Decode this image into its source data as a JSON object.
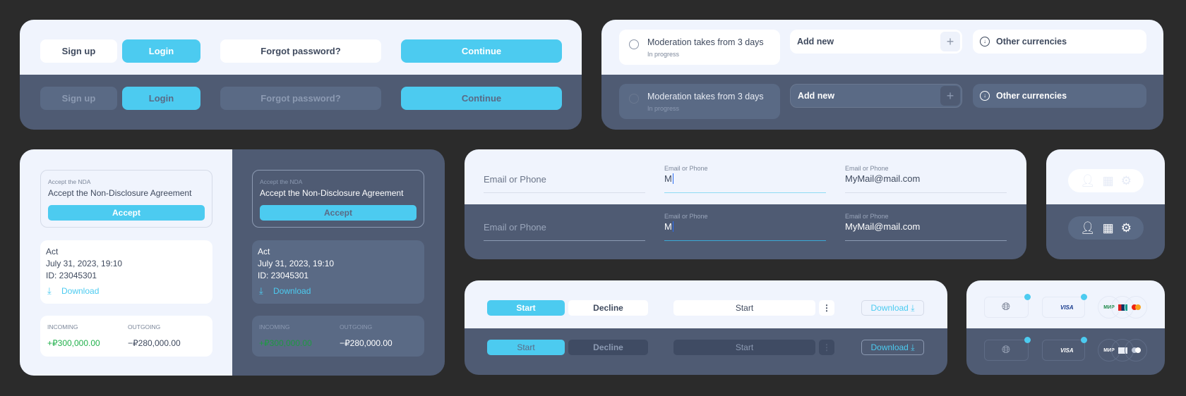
{
  "auth": {
    "sign_up": "Sign up",
    "login": "Login",
    "forgot": "Forgot password?",
    "continue": "Continue"
  },
  "status": {
    "moderation_title": "Moderation takes from 3 days",
    "moderation_sub": "In progress",
    "add_new": "Add new",
    "other_currencies": "Other currencies"
  },
  "nda": {
    "label": "Accept the NDA",
    "title": "Accept the Non-Disclosure Agreement",
    "accept": "Accept"
  },
  "act": {
    "title": "Act",
    "date": "July 31, 2023, 19:10",
    "id": "ID: 23045301",
    "download": "Download"
  },
  "totals": {
    "incoming_label": "INCOMING",
    "outgoing_label": "OUTGOING",
    "incoming": "+₽300,000.00",
    "outgoing": "−₽280,000.00"
  },
  "fields": {
    "label": "Email or Phone",
    "placeholder": "Email or Phone",
    "typing_value": "M",
    "filled_value": "MyMail@mail.com"
  },
  "actions": {
    "start": "Start",
    "decline": "Decline",
    "start_wide": "Start",
    "download": "Download"
  },
  "payments": {
    "visa": "VISA",
    "mir": "МИР"
  },
  "colors": {
    "accent": "#4ccbf0",
    "light_bg": "#f0f4fd",
    "dark_bg": "#4f5b73",
    "dark_card": "#5a6a85",
    "positive": "#22b14c"
  }
}
